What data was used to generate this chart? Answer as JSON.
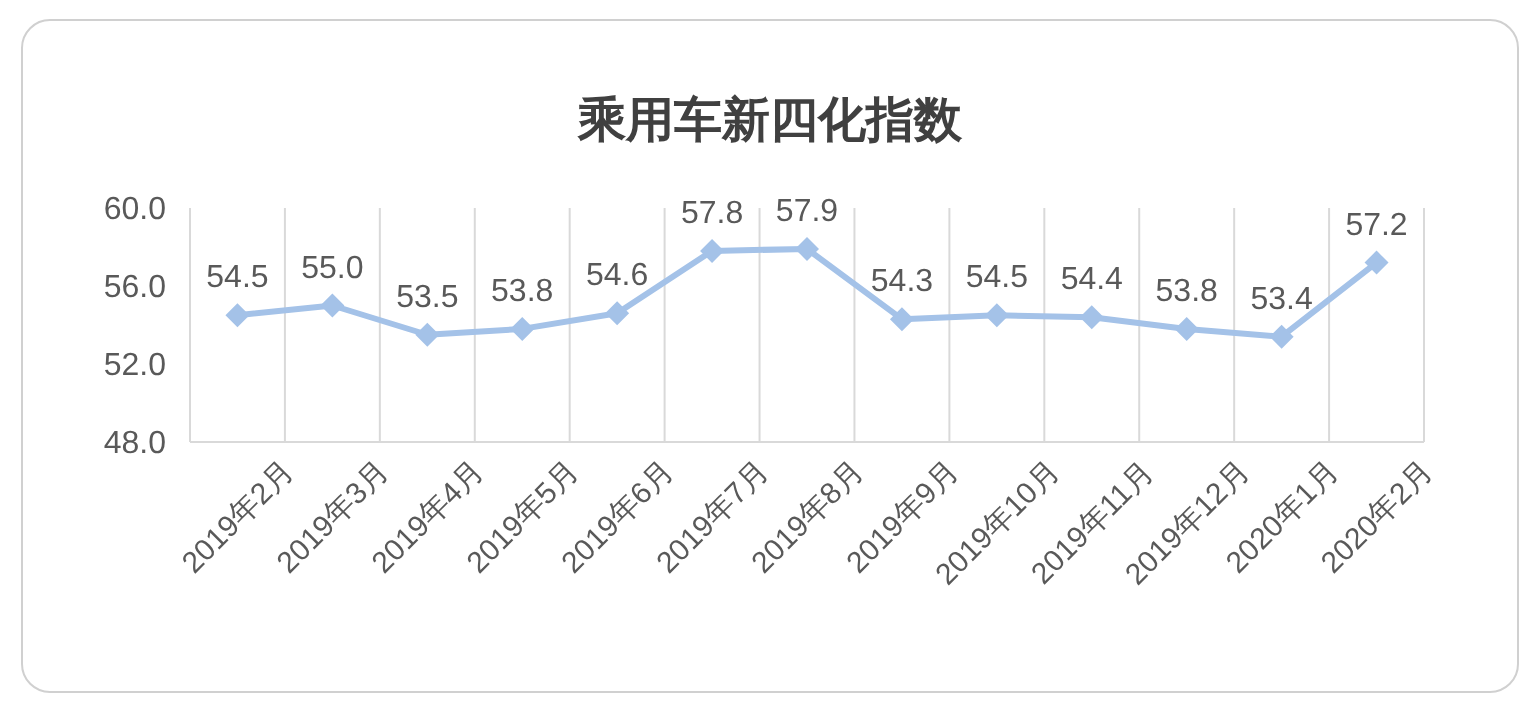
{
  "chart_data": {
    "type": "line",
    "title": "乘用车新四化指数",
    "categories": [
      "2019年2月",
      "2019年3月",
      "2019年4月",
      "2019年5月",
      "2019年6月",
      "2019年7月",
      "2019年8月",
      "2019年9月",
      "2019年10月",
      "2019年11月",
      "2019年12月",
      "2020年1月",
      "2020年2月"
    ],
    "series": [
      {
        "color": "#a4c2e8",
        "values": [
          54.5,
          55.0,
          53.5,
          53.8,
          54.6,
          57.8,
          57.9,
          54.3,
          54.5,
          54.4,
          53.8,
          53.4,
          57.2
        ],
        "value_labels": [
          "54.5",
          "55.0",
          "53.5",
          "53.8",
          "54.6",
          "57.8",
          "57.9",
          "54.3",
          "54.5",
          "54.4",
          "53.8",
          "53.4",
          "57.2"
        ]
      }
    ],
    "ylim": [
      48,
      60
    ],
    "yticks": [
      {
        "value": 48,
        "label": "48.0"
      },
      {
        "value": 52,
        "label": "52.0"
      },
      {
        "value": 56,
        "label": "56.0"
      },
      {
        "value": 60,
        "label": "60.0"
      }
    ],
    "grid": "x",
    "marker": "diamond",
    "line_style": "solid"
  }
}
